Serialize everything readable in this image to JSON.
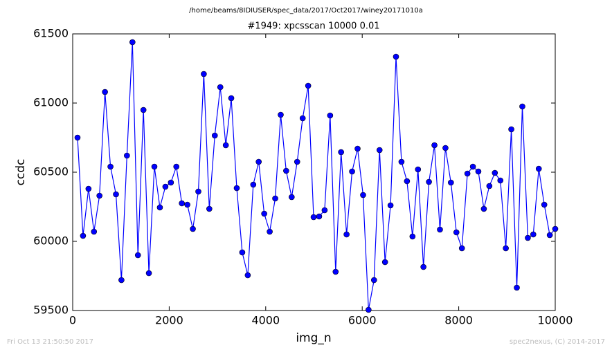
{
  "chart_data": {
    "type": "line",
    "suptitle": "/home/beams/8IDIUSER/spec_data/2017/Oct2017/winey20171010a",
    "title": "#1949: xpcsscan 10000 0.01",
    "x_label": "img_n",
    "y_label": "ccdc",
    "footer_left": "Fri Oct 13 21:50:50 2017",
    "footer_right": "spec2nexus, (C) 2014-2017",
    "x": [
      100,
      214,
      328,
      441,
      555,
      669,
      783,
      897,
      1010,
      1124,
      1238,
      1352,
      1466,
      1579,
      1693,
      1807,
      1921,
      2035,
      2148,
      2262,
      2376,
      2490,
      2604,
      2717,
      2831,
      2945,
      3059,
      3173,
      3286,
      3400,
      3514,
      3628,
      3742,
      3855,
      3969,
      4083,
      4197,
      4311,
      4424,
      4538,
      4652,
      4766,
      4880,
      4993,
      5107,
      5221,
      5335,
      5449,
      5562,
      5676,
      5790,
      5904,
      6018,
      6131,
      6245,
      6359,
      6473,
      6587,
      6700,
      6814,
      6928,
      7042,
      7156,
      7269,
      7383,
      7497,
      7611,
      7725,
      7838,
      7952,
      8066,
      8180,
      8294,
      8407,
      8521,
      8635,
      8749,
      8863,
      8976,
      9090,
      9204,
      9318,
      9432,
      9545,
      9659,
      9773,
      9887,
      10000
    ],
    "series": [
      {
        "name": "ccdc",
        "color": "#0000ff",
        "values": [
          60750,
          60040,
          60380,
          60070,
          60330,
          61080,
          60540,
          60340,
          59720,
          60620,
          61440,
          59900,
          60950,
          59770,
          60540,
          60245,
          60395,
          60425,
          60540,
          60275,
          60265,
          60090,
          60360,
          61210,
          60235,
          60765,
          61115,
          60695,
          61035,
          60385,
          59920,
          59755,
          60410,
          60575,
          60200,
          60070,
          60310,
          60915,
          60510,
          60320,
          60575,
          60890,
          61125,
          60175,
          60180,
          60225,
          60910,
          59780,
          60645,
          60050,
          60505,
          60670,
          60335,
          59505,
          59720,
          60660,
          59850,
          60260,
          61335,
          60575,
          60435,
          60035,
          60520,
          59815,
          60430,
          60695,
          60085,
          60675,
          60425,
          60065,
          59950,
          60490,
          60540,
          60505,
          60235,
          60400,
          60495,
          60440,
          59950,
          60810,
          59665,
          60975,
          60025,
          60050,
          60525,
          60265,
          60045,
          60090
        ]
      }
    ],
    "xlim": [
      0,
      10000
    ],
    "xticks": [
      0,
      2000,
      4000,
      6000,
      8000,
      10000
    ],
    "ylim": [
      59500,
      61500
    ],
    "yticks": [
      59500,
      60000,
      60500,
      61000,
      61500
    ],
    "grid": false
  }
}
